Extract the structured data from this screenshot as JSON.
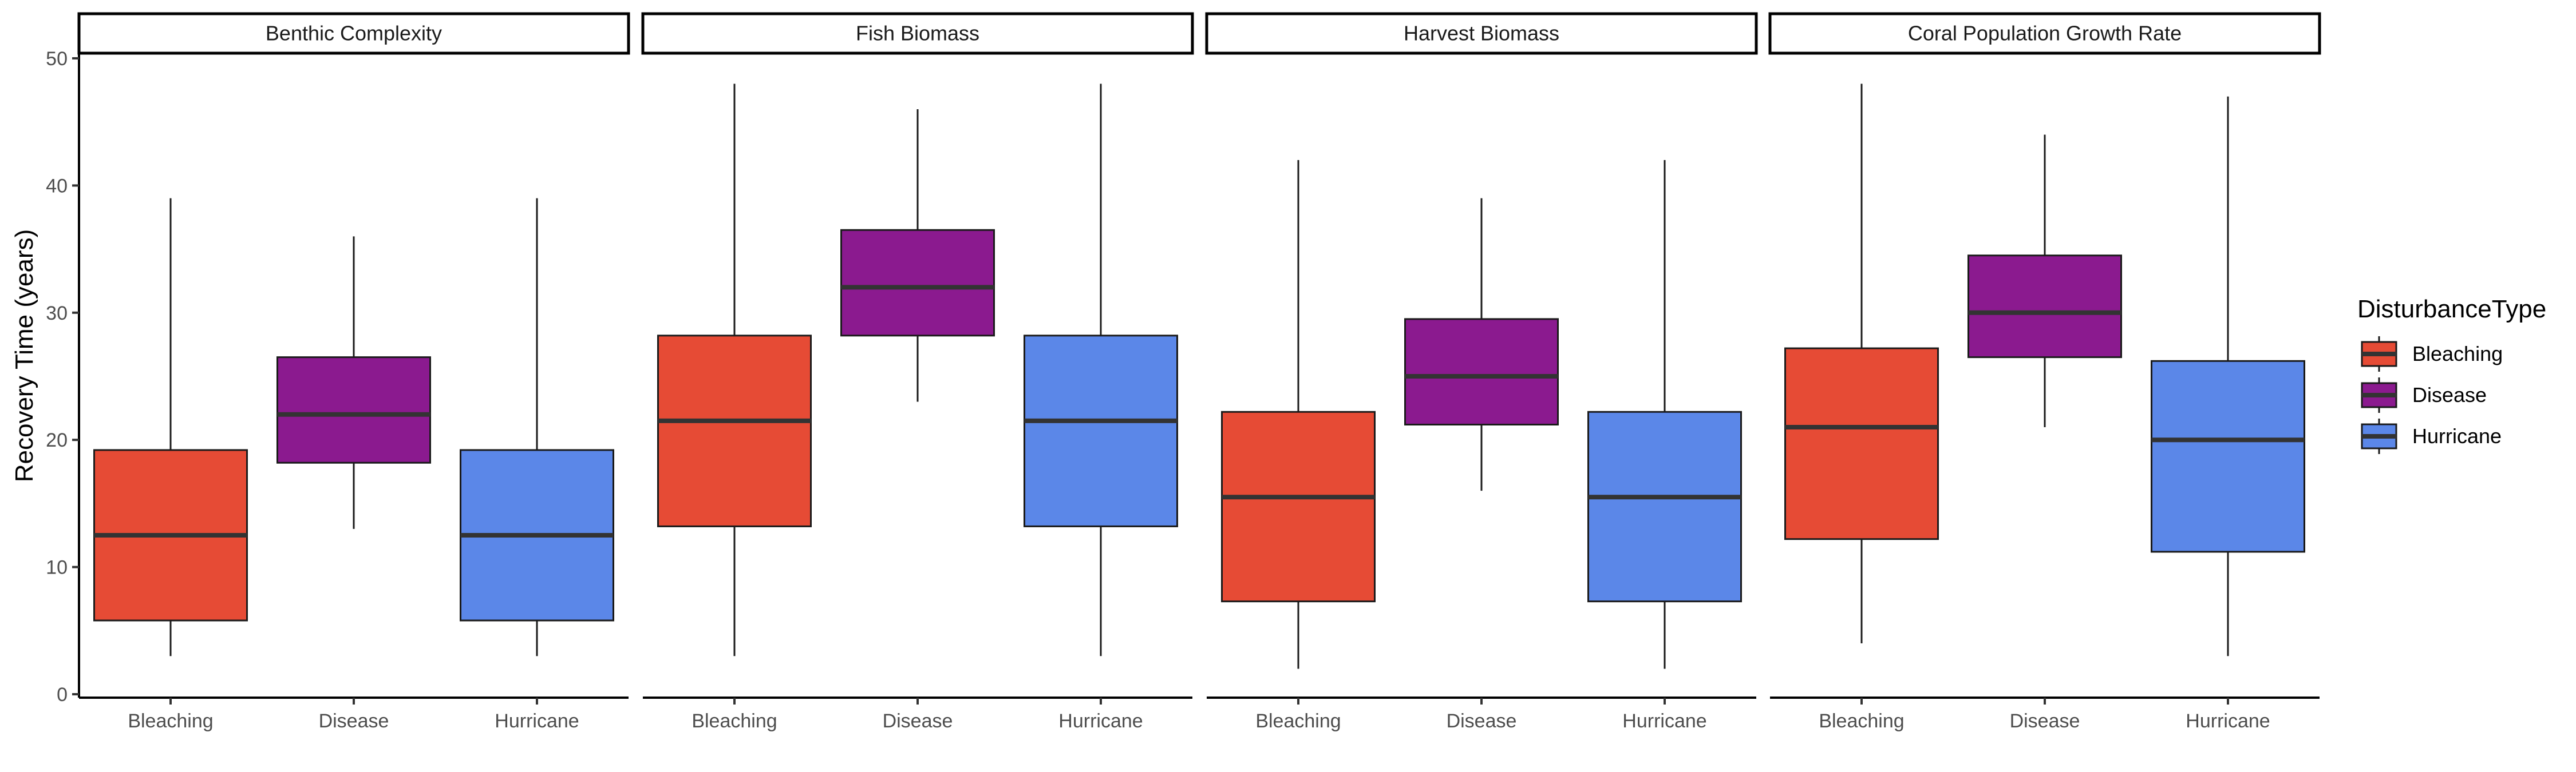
{
  "chart_data": {
    "type": "boxplot",
    "ylabel": "Recovery Time (years)",
    "ylim": [
      0,
      50
    ],
    "y_ticks": [
      0,
      10,
      20,
      30,
      40,
      50
    ],
    "grid": false,
    "legend": {
      "title": "DisturbanceType",
      "placement": "right",
      "entries": [
        {
          "name": "Bleaching",
          "color": "#E64B35"
        },
        {
          "name": "Disease",
          "color": "#8B1A8F"
        },
        {
          "name": "Hurricane",
          "color": "#5B87E8"
        }
      ]
    },
    "categories": [
      "Bleaching",
      "Disease",
      "Hurricane"
    ],
    "facets": [
      {
        "title": "Benthic Complexity",
        "boxes": [
          {
            "category": "Bleaching",
            "min": 3,
            "q1": 5.8,
            "median": 12.5,
            "q3": 19.2,
            "max": 39
          },
          {
            "category": "Disease",
            "min": 13,
            "q1": 18.2,
            "median": 22,
            "q3": 26.5,
            "max": 36
          },
          {
            "category": "Hurricane",
            "min": 3,
            "q1": 5.8,
            "median": 12.5,
            "q3": 19.2,
            "max": 39
          }
        ]
      },
      {
        "title": "Fish Biomass",
        "boxes": [
          {
            "category": "Bleaching",
            "min": 3,
            "q1": 13.2,
            "median": 21.5,
            "q3": 28.2,
            "max": 48
          },
          {
            "category": "Disease",
            "min": 23,
            "q1": 28.2,
            "median": 32,
            "q3": 36.5,
            "max": 46
          },
          {
            "category": "Hurricane",
            "min": 3,
            "q1": 13.2,
            "median": 21.5,
            "q3": 28.2,
            "max": 48
          }
        ]
      },
      {
        "title": "Harvest Biomass",
        "boxes": [
          {
            "category": "Bleaching",
            "min": 2,
            "q1": 7.3,
            "median": 15.5,
            "q3": 22.2,
            "max": 42
          },
          {
            "category": "Disease",
            "min": 16,
            "q1": 21.2,
            "median": 25,
            "q3": 29.5,
            "max": 39
          },
          {
            "category": "Hurricane",
            "min": 2,
            "q1": 7.3,
            "median": 15.5,
            "q3": 22.2,
            "max": 42
          }
        ]
      },
      {
        "title": "Coral Population Growth Rate",
        "boxes": [
          {
            "category": "Bleaching",
            "min": 4,
            "q1": 12.2,
            "median": 21,
            "q3": 27.2,
            "max": 48
          },
          {
            "category": "Disease",
            "min": 21,
            "q1": 26.5,
            "median": 30,
            "q3": 34.5,
            "max": 44
          },
          {
            "category": "Hurricane",
            "min": 3,
            "q1": 11.2,
            "median": 20,
            "q3": 26.2,
            "max": 47
          }
        ]
      }
    ]
  }
}
